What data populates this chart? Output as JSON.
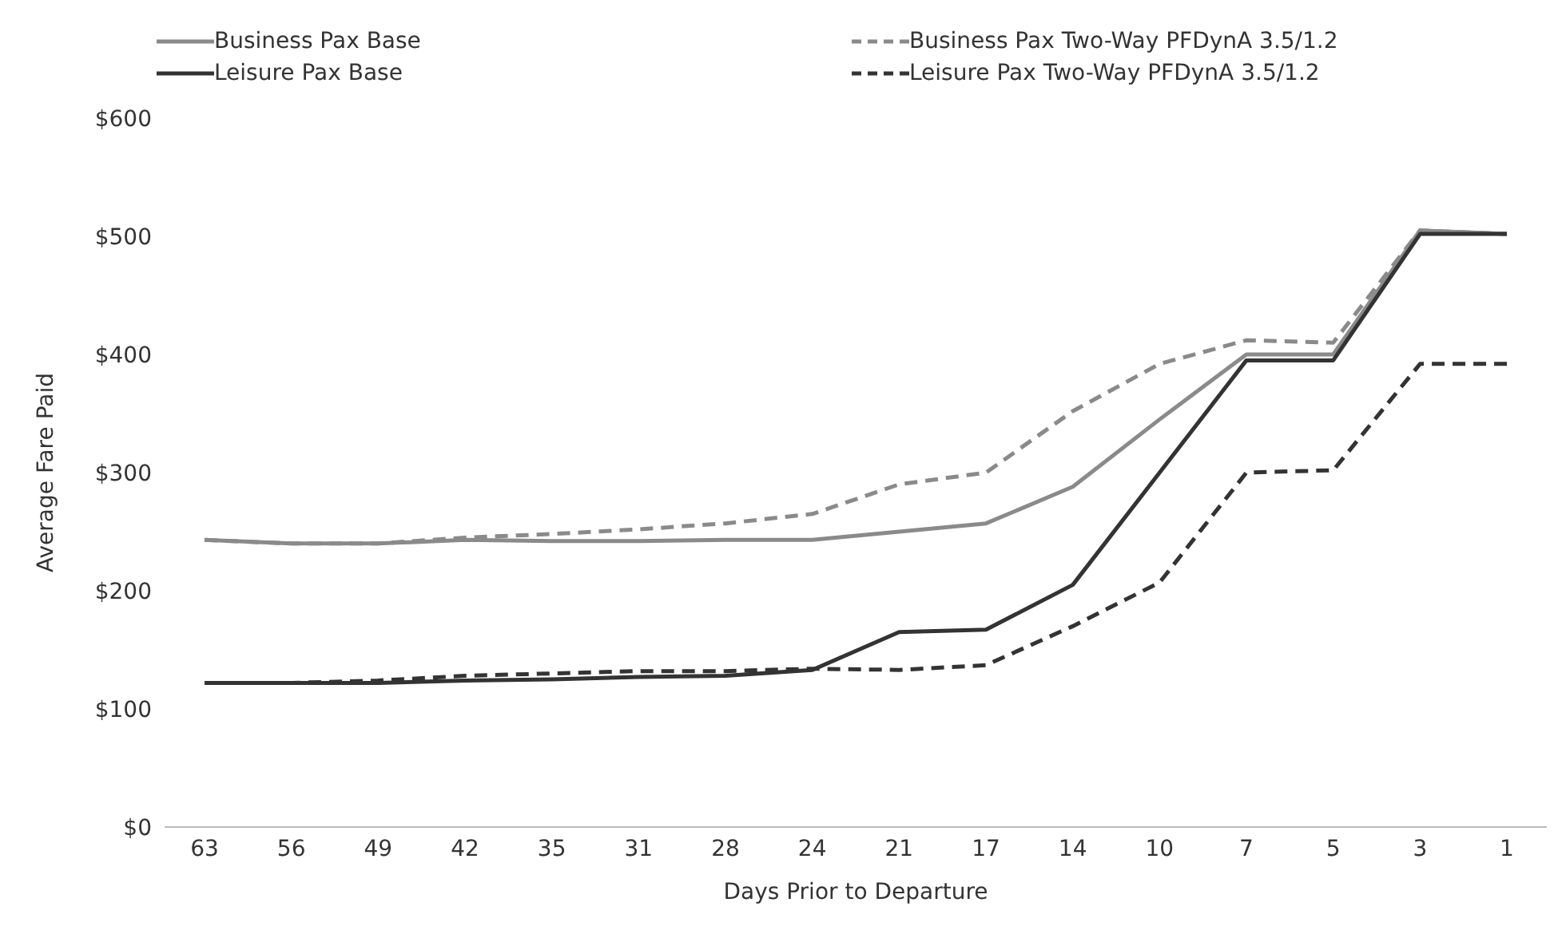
{
  "chart_data": {
    "type": "line",
    "xlabel": "Days Prior to Departure",
    "ylabel": "Average Fare Paid",
    "categories": [
      "63",
      "56",
      "49",
      "42",
      "35",
      "31",
      "28",
      "24",
      "21",
      "17",
      "14",
      "10",
      "7",
      "5",
      "3",
      "1"
    ],
    "series": [
      {
        "name": "Business Pax Base",
        "color": "#8a8a8a",
        "line_style": "solid",
        "values": [
          243,
          240,
          240,
          243,
          242,
          242,
          243,
          243,
          250,
          257,
          288,
          345,
          400,
          400,
          505,
          502
        ]
      },
      {
        "name": "Business Pax Two-Way PFDynA 3.5/1.2",
        "color": "#8a8a8a",
        "line_style": "dashed",
        "values": [
          243,
          240,
          240,
          245,
          248,
          252,
          257,
          265,
          290,
          300,
          352,
          392,
          412,
          410,
          505,
          502
        ]
      },
      {
        "name": "Leisure Pax Base",
        "color": "#333333",
        "line_style": "solid",
        "values": [
          122,
          122,
          122,
          124,
          125,
          127,
          128,
          133,
          165,
          167,
          205,
          300,
          395,
          395,
          502,
          502
        ]
      },
      {
        "name": "Leisure Pax Two-Way PFDynA 3.5/1.2",
        "color": "#333333",
        "line_style": "dashed",
        "values": [
          122,
          122,
          124,
          128,
          130,
          132,
          132,
          134,
          133,
          137,
          170,
          207,
          300,
          302,
          392,
          392
        ]
      }
    ],
    "ylim": [
      0,
      600
    ],
    "yticks": [
      {
        "value": 0,
        "label": "$0"
      },
      {
        "value": 100,
        "label": "$100"
      },
      {
        "value": 200,
        "label": "$200"
      },
      {
        "value": 300,
        "label": "$300"
      },
      {
        "value": 400,
        "label": "$400"
      },
      {
        "value": 500,
        "label": "$500"
      },
      {
        "value": 600,
        "label": "$600"
      }
    ],
    "grid": false,
    "legend": "top",
    "marker": "none"
  }
}
